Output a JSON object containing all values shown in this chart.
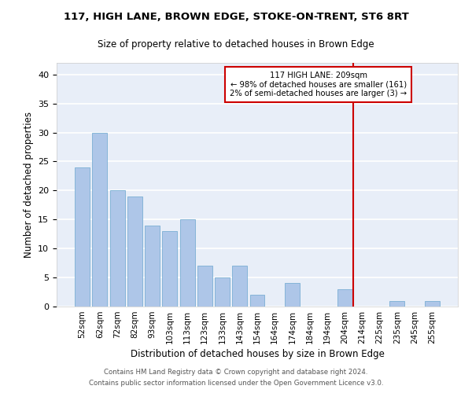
{
  "title": "117, HIGH LANE, BROWN EDGE, STOKE-ON-TRENT, ST6 8RT",
  "subtitle": "Size of property relative to detached houses in Brown Edge",
  "xlabel": "Distribution of detached houses by size in Brown Edge",
  "ylabel": "Number of detached properties",
  "categories": [
    "52sqm",
    "62sqm",
    "72sqm",
    "82sqm",
    "93sqm",
    "103sqm",
    "113sqm",
    "123sqm",
    "133sqm",
    "143sqm",
    "154sqm",
    "164sqm",
    "174sqm",
    "184sqm",
    "194sqm",
    "204sqm",
    "214sqm",
    "225sqm",
    "235sqm",
    "245sqm",
    "255sqm"
  ],
  "values": [
    24,
    30,
    20,
    19,
    14,
    13,
    15,
    7,
    5,
    7,
    2,
    0,
    4,
    0,
    0,
    3,
    0,
    0,
    1,
    0,
    1
  ],
  "bar_color": "#aec6e8",
  "bar_edge_color": "#7aafd4",
  "bg_color": "#e8eef8",
  "grid_color": "#ffffff",
  "annotation_line1": "117 HIGH LANE: 209sqm",
  "annotation_line2": "← 98% of detached houses are smaller (161)",
  "annotation_line3": "2% of semi-detached houses are larger (3) →",
  "annotation_box_color": "#cc0000",
  "red_line_index": 15.5,
  "ylim": [
    0,
    42
  ],
  "yticks": [
    0,
    5,
    10,
    15,
    20,
    25,
    30,
    35,
    40
  ],
  "footnote1": "Contains HM Land Registry data © Crown copyright and database right 2024.",
  "footnote2": "Contains public sector information licensed under the Open Government Licence v3.0."
}
